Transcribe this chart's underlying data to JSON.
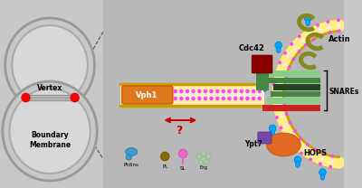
{
  "bg_color": "#c8c8c8",
  "left_panel": {
    "circle_outer": "#c8c8c8",
    "circle_edge": "#999999",
    "circle_inner": "#d8d8d8",
    "red_dot": "#ff0000",
    "vertex_label": "Vertex",
    "boundary_label": "Boundary\nMembrane",
    "lines_color": "#888888"
  },
  "right_panel_bg": "#b8b8b8",
  "membrane": {
    "outer_color": "#c8a000",
    "inner_color": "#ffee88",
    "magenta_dot": "#ff44ff",
    "cyan_dot": "#00aaff",
    "stripe_light": "#eeeeee"
  },
  "proteins": {
    "vph1_color": "#e07820",
    "vph1_text": "Vph1",
    "cdc42_color": "#880000",
    "cdc42_text": "Cdc42",
    "snare_colors": [
      "#88cc88",
      "#448844",
      "#224422",
      "#448844",
      "#88cc88",
      "#cc2222"
    ],
    "snare_heights": [
      7,
      6,
      7,
      6,
      7,
      7
    ],
    "snare_widths": [
      65,
      60,
      55,
      58,
      62,
      68
    ],
    "snare_text": "SNAREs",
    "hops_color": "#e06820",
    "hops_text": "HOPS",
    "hops_purple": "#7744aa",
    "ypt7_text": "Ypt7",
    "actin_color": "#888820",
    "actin_text": "Actin",
    "arrow_red": "#cc0000"
  },
  "legend": {
    "ptdins_color": "#4499cc",
    "ptdins_text": "PtdIns",
    "pl_color": "#886600",
    "pl_text": "PL",
    "sl_color": "#ee66cc",
    "sl_text": "SL",
    "erg_color": "#aaccaa",
    "erg_text": "Erg"
  }
}
